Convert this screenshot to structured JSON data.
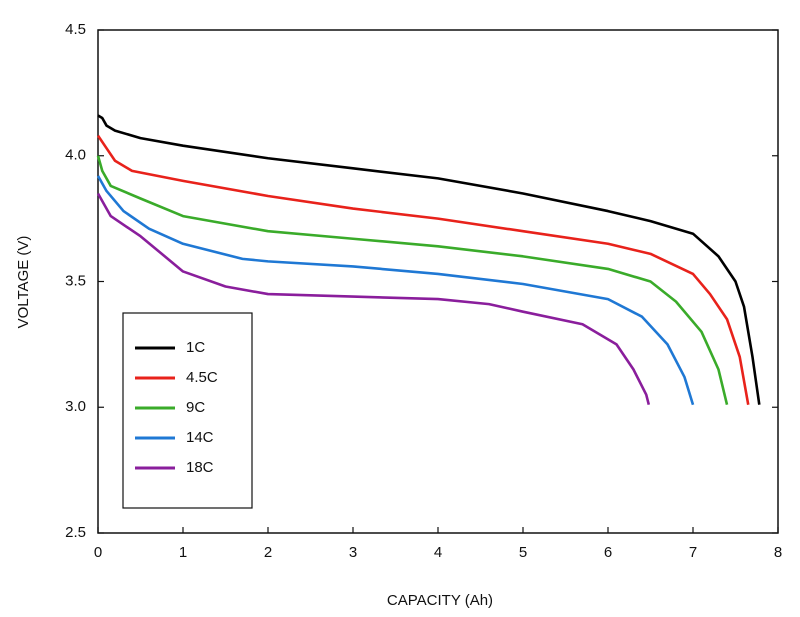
{
  "chart_data": {
    "type": "line",
    "x_label": "CAPACITY (Ah)",
    "y_label": "VOLTAGE (V)",
    "xlim": [
      0,
      8
    ],
    "ylim": [
      2.5,
      4.5
    ],
    "xticks": [
      0,
      1,
      2,
      3,
      4,
      5,
      6,
      7,
      8
    ],
    "yticks": [
      2.5,
      {
        "value": 3,
        "label": "3.0"
      },
      3.5,
      {
        "value": 4,
        "label": "4.0"
      },
      4.5
    ],
    "grid": false,
    "legend": "lower left",
    "series": [
      {
        "name": "1C",
        "color": "#000000",
        "x": [
          0,
          0.05,
          0.1,
          0.2,
          0.5,
          1,
          2,
          3,
          4,
          5,
          6,
          6.5,
          7,
          7.3,
          7.5,
          7.6,
          7.7,
          7.78
        ],
        "values": [
          4.16,
          4.15,
          4.12,
          4.1,
          4.07,
          4.04,
          3.99,
          3.95,
          3.91,
          3.85,
          3.78,
          3.74,
          3.69,
          3.6,
          3.5,
          3.4,
          3.2,
          3.01
        ]
      },
      {
        "name": "4.5C",
        "color": "#e8221b",
        "x": [
          0,
          0.1,
          0.2,
          0.4,
          1,
          2,
          3,
          4,
          5,
          6,
          6.5,
          7,
          7.2,
          7.4,
          7.55,
          7.65
        ],
        "values": [
          4.08,
          4.03,
          3.98,
          3.94,
          3.9,
          3.84,
          3.79,
          3.75,
          3.7,
          3.65,
          3.61,
          3.53,
          3.45,
          3.35,
          3.2,
          3.01
        ]
      },
      {
        "name": "9C",
        "color": "#3aab2a",
        "x": [
          0,
          0.05,
          0.15,
          0.5,
          1,
          2,
          3,
          4,
          5,
          6,
          6.5,
          6.8,
          7.1,
          7.3,
          7.4
        ],
        "values": [
          4.0,
          3.94,
          3.88,
          3.83,
          3.76,
          3.7,
          3.67,
          3.64,
          3.6,
          3.55,
          3.5,
          3.42,
          3.3,
          3.15,
          3.01
        ]
      },
      {
        "name": "14C",
        "color": "#1f78d4",
        "x": [
          0,
          0.1,
          0.3,
          0.6,
          1,
          1.7,
          2,
          3,
          4,
          5,
          6,
          6.4,
          6.7,
          6.9,
          7.0
        ],
        "values": [
          3.92,
          3.86,
          3.78,
          3.71,
          3.65,
          3.59,
          3.58,
          3.56,
          3.53,
          3.49,
          3.43,
          3.36,
          3.25,
          3.12,
          3.01
        ]
      },
      {
        "name": "18C",
        "color": "#8a1e9c",
        "x": [
          0,
          0.15,
          0.5,
          1,
          1.5,
          2,
          3,
          4,
          4.6,
          5,
          5.7,
          6.1,
          6.3,
          6.45,
          6.48
        ],
        "values": [
          3.85,
          3.76,
          3.68,
          3.54,
          3.48,
          3.45,
          3.44,
          3.43,
          3.41,
          3.38,
          3.33,
          3.25,
          3.15,
          3.05,
          3.01
        ]
      }
    ]
  }
}
